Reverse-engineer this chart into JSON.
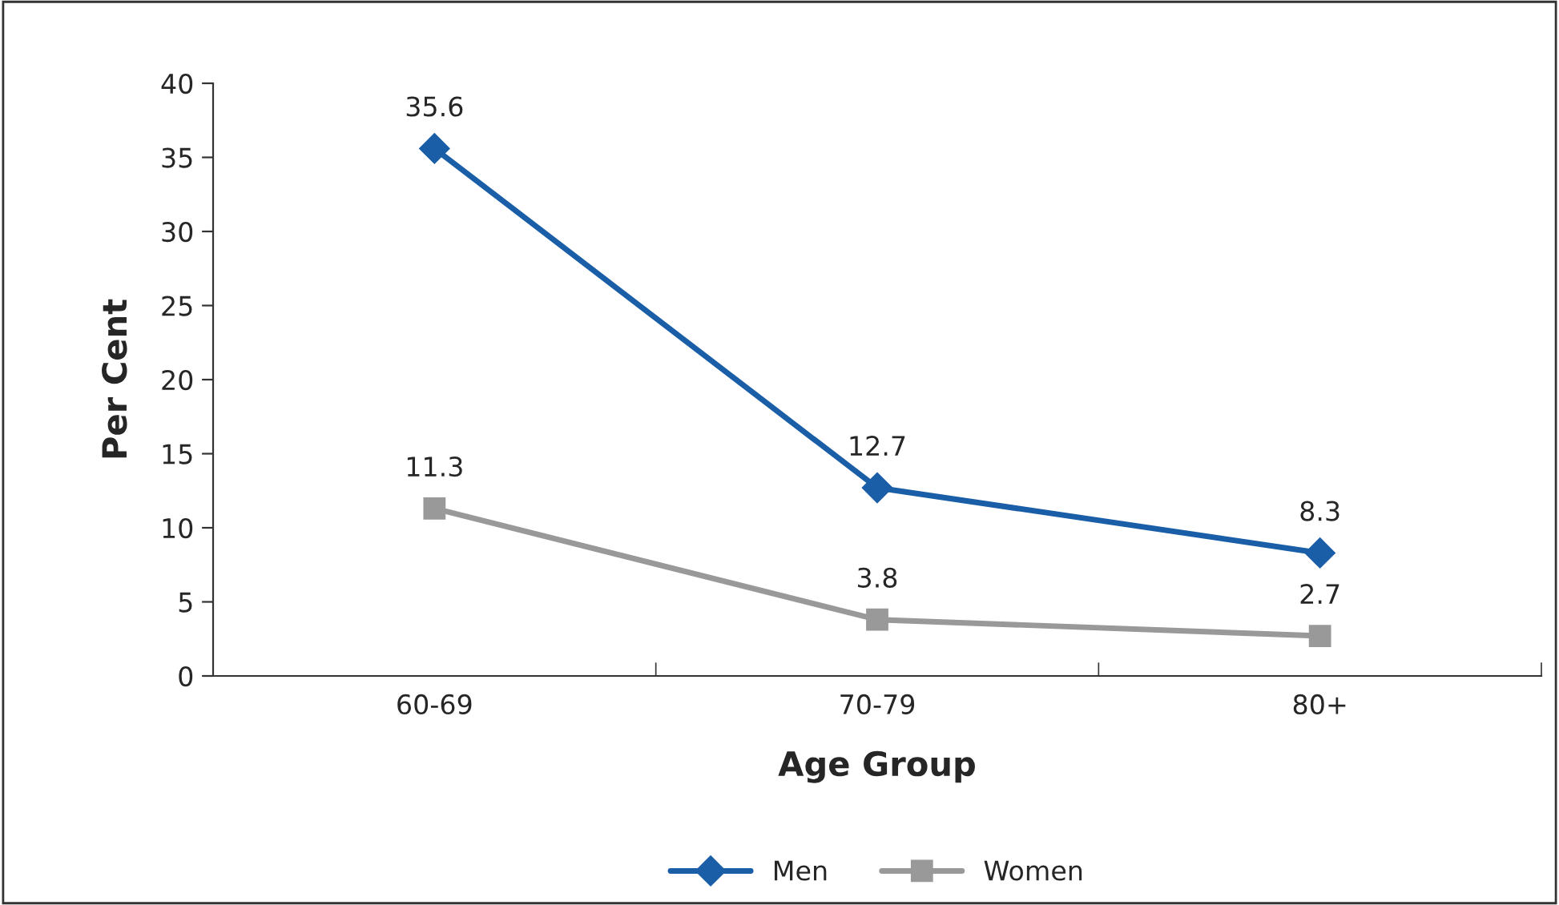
{
  "chart_data": {
    "type": "line",
    "xlabel": "Age Group",
    "ylabel": "Per Cent",
    "categories": [
      "60-69",
      "70-79",
      "80+"
    ],
    "series": [
      {
        "name": "Men",
        "color": "#1a5ea8",
        "marker": "diamond",
        "values": [
          35.6,
          12.7,
          8.3
        ]
      },
      {
        "name": "Women",
        "color": "#999999",
        "marker": "square",
        "values": [
          11.3,
          3.8,
          2.7
        ]
      }
    ],
    "ylim": [
      0,
      40
    ],
    "yticks": [
      0,
      5,
      10,
      15,
      20,
      25,
      30,
      35,
      40
    ],
    "data_labels": true,
    "grid": false,
    "legend": "bottom",
    "line_style": "solid"
  }
}
